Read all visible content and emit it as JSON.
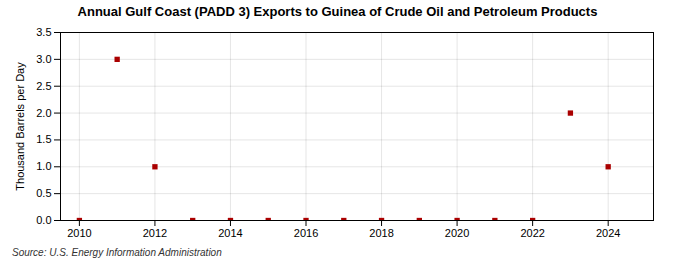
{
  "chart_data": {
    "type": "scatter",
    "title": "Annual Gulf Coast (PADD 3) Exports to Guinea of Crude Oil and Petroleum Products",
    "ylabel": "Thousand Barrels per Day",
    "source": "Source: U.S. Energy Information Administration",
    "x": [
      2010,
      2011,
      2012,
      2013,
      2014,
      2015,
      2016,
      2017,
      2018,
      2019,
      2020,
      2021,
      2022,
      2023,
      2024
    ],
    "values": [
      0.0,
      3.0,
      1.0,
      0.0,
      0.0,
      0.0,
      0.0,
      0.0,
      0.0,
      0.0,
      0.0,
      0.0,
      0.0,
      2.0,
      1.0
    ],
    "color": "#aa0000",
    "marker": "square",
    "xlim": [
      2009.5,
      2025.2
    ],
    "ylim": [
      0.0,
      3.5
    ],
    "xticks": [
      2010,
      2012,
      2014,
      2016,
      2018,
      2020,
      2022,
      2024
    ],
    "yticks": [
      {
        "value": 0.0,
        "label": "0.0"
      },
      {
        "value": 0.5,
        "label": "0.5"
      },
      {
        "value": 1.0,
        "label": "1.0"
      },
      {
        "value": 1.5,
        "label": "1.5"
      },
      {
        "value": 2.0,
        "label": "2.0"
      },
      {
        "value": 2.5,
        "label": "2.5"
      },
      {
        "value": 3.0,
        "label": "3.0"
      },
      {
        "value": 3.5,
        "label": "3.5"
      }
    ],
    "grid": true
  }
}
